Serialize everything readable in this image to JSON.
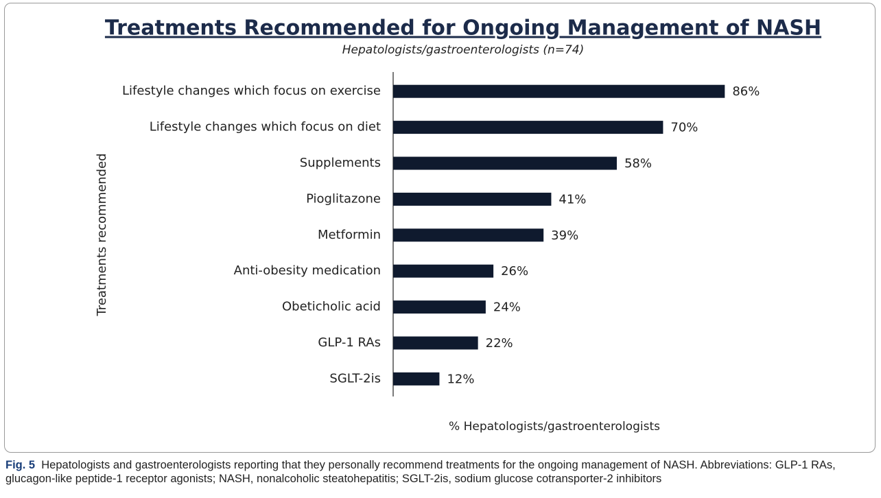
{
  "chart_data": {
    "type": "bar",
    "orientation": "horizontal",
    "title": "Treatments Recommended for Ongoing Management of NASH",
    "subtitle": "Hepatologists/gastroenterologists (n=74)",
    "ylabel": "Treatments recommended",
    "xlabel": "% Hepatologists/gastroenterologists",
    "categories": [
      "Lifestyle changes which focus on exercise",
      "Lifestyle changes which focus on diet",
      "Supplements",
      "Pioglitazone",
      "Metformin",
      "Anti-obesity medication",
      "Obeticholic acid",
      "GLP-1 RAs",
      "SGLT-2is"
    ],
    "values": [
      86,
      70,
      58,
      41,
      39,
      26,
      24,
      22,
      12
    ],
    "value_labels": [
      "86%",
      "70%",
      "58%",
      "41%",
      "39%",
      "26%",
      "24%",
      "22%",
      "12%"
    ],
    "color": "#0f1a2e",
    "xlim": [
      0,
      100
    ]
  },
  "caption": {
    "label": "Fig. 5",
    "text": "Hepatologists and gastroenterologists reporting that they personally recommend treatments for the ongoing management of NASH. Abbreviations: GLP-1 RAs, glucagon-like peptide-1 receptor agonists; NASH, nonalcoholic steatohepatitis; SGLT-2is, sodium glucose cotransporter-2 inhibitors"
  }
}
